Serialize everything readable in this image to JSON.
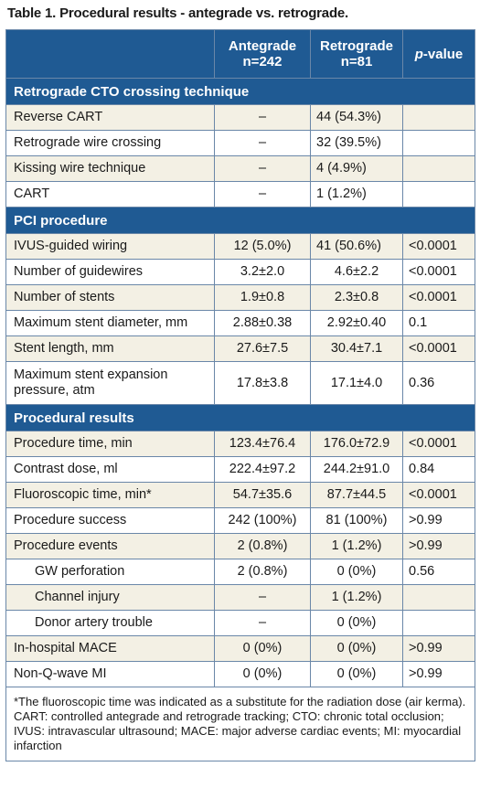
{
  "title": "Table 1. Procedural results - antegrade vs. retrograde.",
  "header": {
    "antegrade_line1": "Antegrade",
    "antegrade_line2": "n=242",
    "retrograde_line1": "Retrograde",
    "retrograde_line2": "n=81",
    "pvalue_italic": "p",
    "pvalue_rest": "-value"
  },
  "sections": [
    {
      "title": "Retrograde CTO crossing technique",
      "rows": [
        {
          "label": "Reverse CART",
          "ante": "–",
          "retro": "44 (54.3%)",
          "p": ""
        },
        {
          "label": "Retrograde wire crossing",
          "ante": "–",
          "retro": "32 (39.5%)",
          "p": ""
        },
        {
          "label": "Kissing wire technique",
          "ante": "–",
          "retro": "4 (4.9%)",
          "p": ""
        },
        {
          "label": "CART",
          "ante": "–",
          "retro": "1 (1.2%)",
          "p": ""
        }
      ]
    },
    {
      "title": "PCI procedure",
      "rows": [
        {
          "label": "IVUS-guided wiring",
          "ante": "12 (5.0%)",
          "retro": "41 (50.6%)",
          "p": "<0.0001"
        },
        {
          "label": "Number of guidewires",
          "ante": "3.2±2.0",
          "retro": "4.6±2.2",
          "p": "<0.0001"
        },
        {
          "label": "Number of stents",
          "ante": "1.9±0.8",
          "retro": "2.3±0.8",
          "p": "<0.0001"
        },
        {
          "label": "Maximum stent diameter, mm",
          "ante": "2.88±0.38",
          "retro": "2.92±0.40",
          "p": "0.1"
        },
        {
          "label": "Stent length, mm",
          "ante": "27.6±7.5",
          "retro": "30.4±7.1",
          "p": "<0.0001"
        },
        {
          "label_line1": "Maximum stent expansion",
          "label_line2": "pressure, atm",
          "ante": "17.8±3.8",
          "retro": "17.1±4.0",
          "p": "0.36"
        }
      ]
    },
    {
      "title": "Procedural results",
      "rows": [
        {
          "label": "Procedure time, min",
          "ante": "123.4±76.4",
          "retro": "176.0±72.9",
          "p": "<0.0001"
        },
        {
          "label": "Contrast dose, ml",
          "ante": "222.4±97.2",
          "retro": "244.2±91.0",
          "p": "0.84"
        },
        {
          "label": "Fluoroscopic time, min*",
          "ante": "54.7±35.6",
          "retro": "87.7±44.5",
          "p": "<0.0001"
        },
        {
          "label": "Procedure success",
          "ante": "242 (100%)",
          "retro": "81 (100%)",
          "p": ">0.99"
        },
        {
          "label": "Procedure events",
          "ante": "2 (0.8%)",
          "retro": "1 (1.2%)",
          "p": ">0.99"
        },
        {
          "label": "GW perforation",
          "ante": "2 (0.8%)",
          "retro": "0 (0%)",
          "p": "0.56"
        },
        {
          "label": "Channel injury",
          "ante": "–",
          "retro": "1 (1.2%)",
          "p": ""
        },
        {
          "label": "Donor artery trouble",
          "ante": "–",
          "retro": "0 (0%)",
          "p": ""
        },
        {
          "label": "In-hospital MACE",
          "ante": "0 (0%)",
          "retro": "0 (0%)",
          "p": ">0.99"
        },
        {
          "label": "Non-Q-wave MI",
          "ante": "0 (0%)",
          "retro": "0 (0%)",
          "p": ">0.99"
        }
      ]
    }
  ],
  "footnote": "*The fluoroscopic time was indicated as a substitute for the radiation dose (air kerma). CART: controlled antegrade and retrograde tracking; CTO: chronic total occlusion; IVUS: intravascular ultrasound; MACE: major adverse cardiac events; MI: myocardial infarction"
}
